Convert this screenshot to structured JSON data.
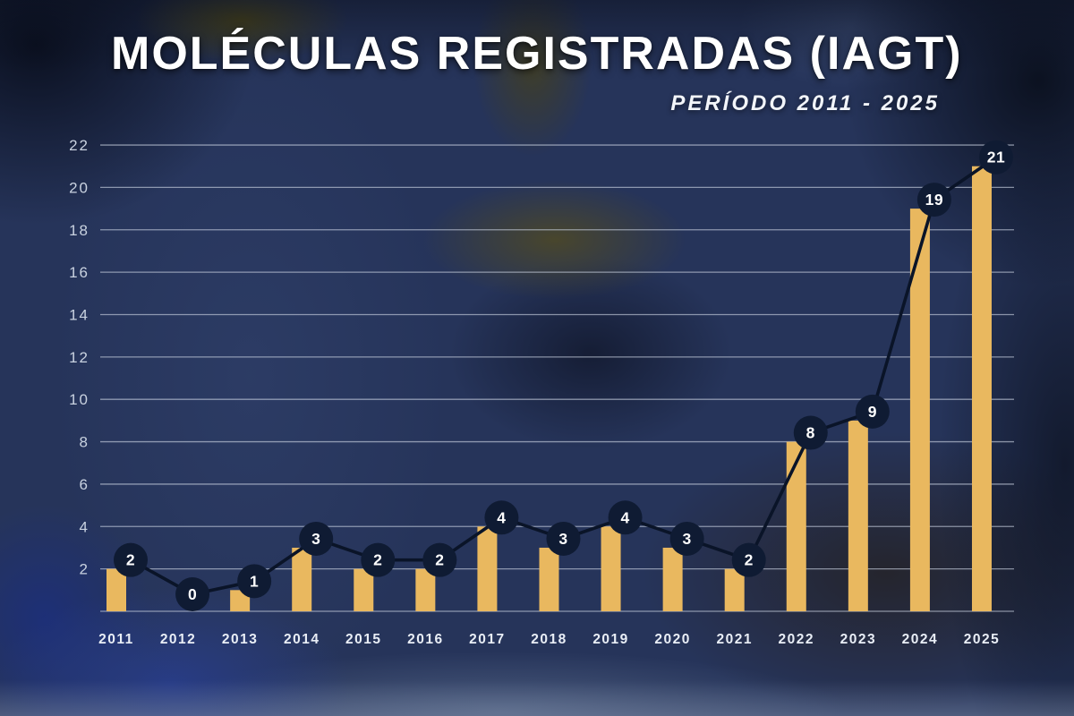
{
  "header": {
    "title": "MOLÉCULAS REGISTRADAS (IAGT)",
    "subtitle": "PERÍODO 2011 - 2025"
  },
  "chart_data": {
    "type": "bar",
    "overlay": "line-with-markers",
    "title": "MOLÉCULAS REGISTRADAS (IAGT)",
    "subtitle": "PERÍODO 2011 - 2025",
    "categories": [
      "2011",
      "2012",
      "2013",
      "2014",
      "2015",
      "2016",
      "2017",
      "2018",
      "2019",
      "2020",
      "2021",
      "2022",
      "2023",
      "2024",
      "2025"
    ],
    "values": [
      2,
      0,
      1,
      3,
      2,
      2,
      4,
      3,
      4,
      3,
      2,
      8,
      9,
      19,
      21
    ],
    "yticks": [
      2,
      4,
      6,
      8,
      10,
      12,
      14,
      16,
      18,
      20,
      22
    ],
    "ylim": [
      0,
      22
    ],
    "xlabel": "",
    "ylabel": "",
    "grid": true,
    "legend": "none",
    "data_labels": true,
    "colors": {
      "bar": "#E9B85F",
      "line": "#0A1428",
      "marker_fill": "#0F1B33",
      "marker_text": "#FFFFFF",
      "grid": "#CDD5E4",
      "tick_text": "#C9D2E0",
      "axis_text": "#E9EEF6",
      "title_text": "#FFFFFF",
      "background": "#26345A"
    }
  }
}
